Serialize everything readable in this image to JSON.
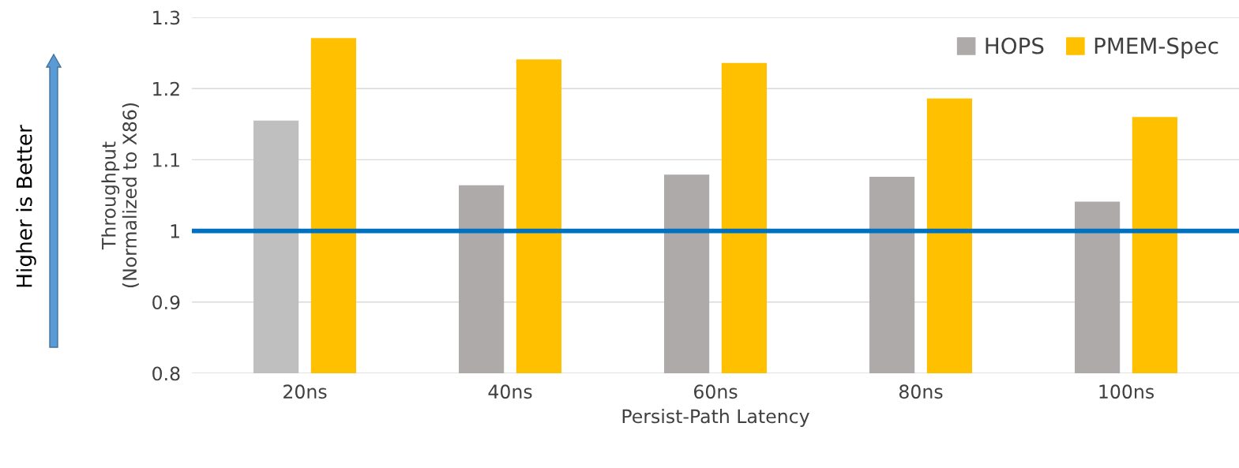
{
  "chart_data": {
    "type": "bar",
    "xlabel": "Persist-Path Latency",
    "ylabel": "Throughput\n(Normalized to X86)",
    "categories": [
      "20ns",
      "40ns",
      "60ns",
      "80ns",
      "100ns"
    ],
    "series": [
      {
        "name": "HOPS",
        "color": "#aeaaaa",
        "colors": [
          "#bfbfbf",
          "#aeaaaa",
          "#aeaaaa",
          "#aeaaaa",
          "#aeaaaa"
        ],
        "values": [
          1.155,
          1.064,
          1.079,
          1.076,
          1.041
        ]
      },
      {
        "name": "PMEM-Spec",
        "color": "#ffc000",
        "values": [
          1.271,
          1.241,
          1.236,
          1.186,
          1.16
        ]
      }
    ],
    "ylim": [
      0.8,
      1.3
    ],
    "yticks": [
      0.8,
      0.9,
      1,
      1.1,
      1.2,
      1.3
    ],
    "grid": "y",
    "legend": "top right",
    "ref_lines": [
      {
        "axis": "y",
        "value": 1,
        "color": "#0070c0"
      }
    ],
    "annotations": [
      "Higher is Better"
    ]
  }
}
